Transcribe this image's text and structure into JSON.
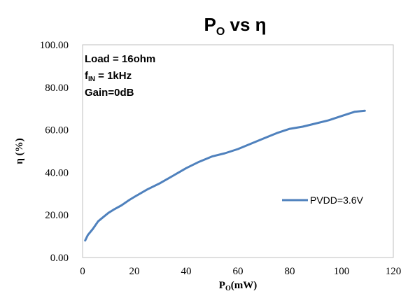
{
  "chart_data": {
    "type": "line",
    "title": {
      "main": "P",
      "sub": "O",
      "rest": " vs η"
    },
    "xlabel": {
      "main": "P",
      "sub": "O",
      "rest": "(mW)"
    },
    "ylabel": "η (%)",
    "xlim": [
      0,
      120
    ],
    "ylim": [
      0,
      100
    ],
    "xticks": [
      "0",
      "20",
      "40",
      "60",
      "80",
      "100",
      "120"
    ],
    "yticks": [
      "0.00",
      "20.00",
      "40.00",
      "60.00",
      "80.00",
      "100.00"
    ],
    "grid": false,
    "legend_position": "right",
    "annotations": [
      {
        "main": "Load = 16ohm",
        "sub": "",
        "rest": ""
      },
      {
        "main": "f",
        "sub": "IN",
        "rest": " = 1kHz"
      },
      {
        "main": "Gain=0dB",
        "sub": "",
        "rest": ""
      }
    ],
    "series": [
      {
        "name": "PVDD=3.6V",
        "color": "#4f81bd",
        "x": [
          1,
          2,
          4,
          6,
          8,
          10,
          12,
          15,
          18,
          20,
          25,
          30,
          35,
          40,
          45,
          50,
          55,
          60,
          65,
          70,
          75,
          80,
          85,
          90,
          95,
          100,
          105,
          109
        ],
        "y": [
          8.0,
          10.5,
          13.5,
          17.0,
          19.0,
          21.0,
          22.5,
          24.5,
          27.0,
          28.5,
          32.0,
          35.0,
          38.5,
          42.0,
          45.0,
          47.5,
          49.0,
          51.0,
          53.5,
          56.0,
          58.5,
          60.5,
          61.5,
          63.0,
          64.5,
          66.5,
          68.5,
          69.0
        ]
      }
    ]
  }
}
